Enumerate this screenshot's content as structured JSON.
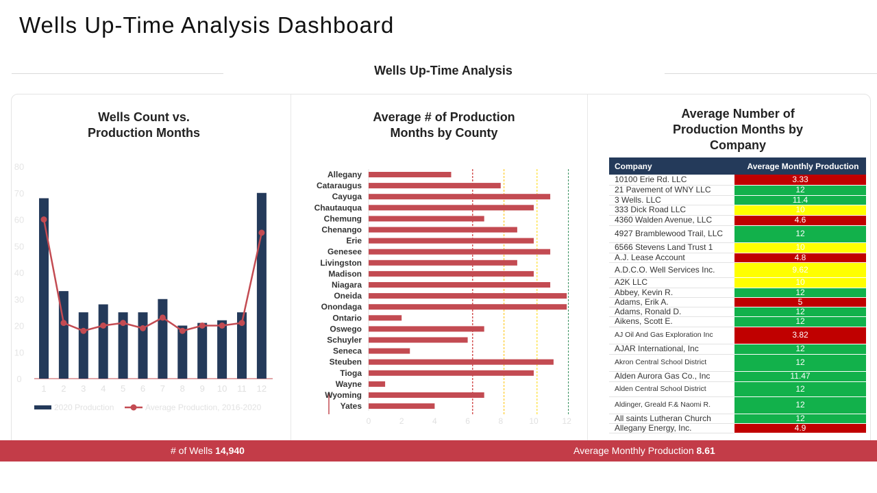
{
  "page": {
    "title": "Wells Up-Time Analysis Dashboard",
    "section_title": "Wells Up-Time Analysis"
  },
  "colors": {
    "navy": "#243a5a",
    "red": "#c34b52",
    "footer": "#c33c48",
    "green": "#12b14b",
    "yellow": "#ffff00",
    "dark_red": "#c00000"
  },
  "chart_data": [
    {
      "type": "bar",
      "title": "Wells Count vs. Production Months",
      "categories": [
        "1",
        "2",
        "3",
        "4",
        "5",
        "6",
        "7",
        "8",
        "9",
        "10",
        "11",
        "12"
      ],
      "ylim": [
        0,
        80
      ],
      "yticks": [
        0,
        10,
        20,
        30,
        40,
        50,
        60,
        70,
        80
      ],
      "legend_position": "bottom",
      "series": [
        {
          "name": "2020 Production",
          "type": "bar",
          "values": [
            68,
            33,
            25,
            28,
            25,
            25,
            30,
            20,
            21,
            22,
            25,
            70
          ]
        },
        {
          "name": "Average Production, 2016-2020",
          "type": "line",
          "values": [
            60,
            21,
            18,
            20,
            21,
            19,
            23,
            18,
            20,
            20,
            21,
            55
          ]
        }
      ]
    },
    {
      "type": "bar",
      "orientation": "horizontal",
      "title": "Average # of Production Months by County",
      "categories": [
        "Allegany",
        "Cataraugus",
        "Cayuga",
        "Chautauqua",
        "Chemung",
        "Chenango",
        "Erie",
        "Genesee",
        "Livingston",
        "Madison",
        "Niagara",
        "Oneida",
        "Onondaga",
        "Ontario",
        "Oswego",
        "Schuyler",
        "Seneca",
        "Steuben",
        "Tioga",
        "Wayne",
        "Wyoming",
        "Yates"
      ],
      "values": [
        5,
        8,
        11,
        10,
        7,
        9,
        10,
        11,
        9,
        10,
        11,
        12,
        12,
        2,
        7,
        6,
        2.5,
        11.2,
        10,
        1,
        7,
        4
      ],
      "xlim": [
        0,
        12
      ],
      "xticks": [
        0,
        2,
        4,
        6,
        8,
        10,
        12
      ],
      "reference_lines": [
        6.3,
        8.2,
        10.2,
        12.1
      ]
    },
    {
      "type": "table",
      "title": "Average Number of Production Months by Company",
      "columns": [
        "Company",
        "Average Monthly Production"
      ],
      "rows": [
        {
          "company": "10100 Erie Rd. LLC",
          "value": "3.33",
          "status": "red"
        },
        {
          "company": "21 Pavement of WNY LLC",
          "value": "12",
          "status": "green"
        },
        {
          "company": "3 Wells. LLC",
          "value": "11.4",
          "status": "green"
        },
        {
          "company": "333 Dick Road LLC",
          "value": "10",
          "status": "yellow"
        },
        {
          "company": "4360 Walden Avenue, LLC",
          "value": "4.6",
          "status": "red"
        },
        {
          "company": "4927 Bramblewood Trail, LLC",
          "value": "12",
          "status": "green"
        },
        {
          "company": "6566 Stevens Land Trust 1",
          "value": "10",
          "status": "yellow"
        },
        {
          "company": "A.J. Lease Account",
          "value": "4.8",
          "status": "red"
        },
        {
          "company": "A.D.C.O. Well Services Inc.",
          "value": "9.62",
          "status": "yellow"
        },
        {
          "company": "A2K LLC",
          "value": "10",
          "status": "yellow"
        },
        {
          "company": "Abbey, Kevin R.",
          "value": "12",
          "status": "green"
        },
        {
          "company": "Adams, Erik A.",
          "value": "5",
          "status": "red"
        },
        {
          "company": "Adams, Ronald D.",
          "value": "12",
          "status": "green"
        },
        {
          "company": "Aikens, Scott E.",
          "value": "12",
          "status": "green"
        },
        {
          "company": "AJ Oil And Gas Exploration Inc",
          "value": "3.82",
          "status": "red"
        },
        {
          "company": "AJAR International, Inc",
          "value": "12",
          "status": "green"
        },
        {
          "company": "Akron Central School District",
          "value": "12",
          "status": "green"
        },
        {
          "company": "Alden Aurora Gas Co., Inc",
          "value": "11.47",
          "status": "green"
        },
        {
          "company": "Alden Central School District",
          "value": "12",
          "status": "green"
        },
        {
          "company": "Aldinger, Greald F.& Naomi R.",
          "value": "12",
          "status": "green"
        },
        {
          "company": "All saints Lutheran Church",
          "value": "12",
          "status": "green"
        },
        {
          "company": "Allegany Energy, Inc.",
          "value": "4.9",
          "status": "red"
        }
      ]
    }
  ],
  "footer": {
    "wells_label": "# of Wells",
    "wells_value": "14,940",
    "avg_label": "Average Monthly Production",
    "avg_value": "8.61"
  }
}
